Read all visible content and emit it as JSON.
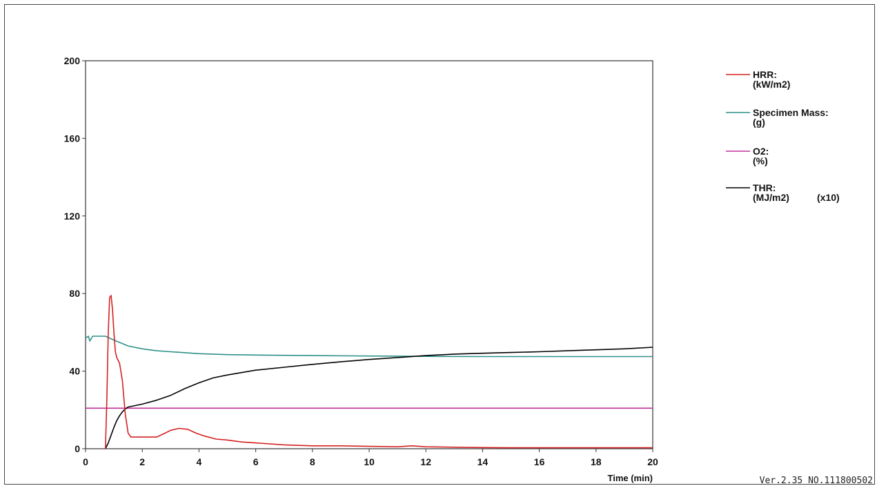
{
  "chart_data": {
    "type": "line",
    "xlabel": "Time (min)",
    "ylabel": "",
    "xlim": [
      0,
      20
    ],
    "ylim": [
      0,
      200
    ],
    "x_ticks": [
      "0",
      "2",
      "4",
      "6",
      "8",
      "10",
      "12",
      "14",
      "16",
      "18",
      "20"
    ],
    "y_ticks": [
      "0",
      "40",
      "80",
      "120",
      "160",
      "200"
    ],
    "grid": false,
    "legend_position": "right",
    "series": [
      {
        "name": "HRR:",
        "unit": "(kW/m2)",
        "multiplier": "",
        "color": "#d42020",
        "points": [
          [
            0.7,
            0
          ],
          [
            0.75,
            25
          ],
          [
            0.8,
            60
          ],
          [
            0.85,
            78
          ],
          [
            0.9,
            79
          ],
          [
            0.95,
            72
          ],
          [
            1.0,
            60
          ],
          [
            1.05,
            50
          ],
          [
            1.1,
            47
          ],
          [
            1.2,
            44
          ],
          [
            1.3,
            35
          ],
          [
            1.4,
            18
          ],
          [
            1.5,
            8
          ],
          [
            1.6,
            6
          ],
          [
            2.0,
            6
          ],
          [
            2.5,
            6
          ],
          [
            2.8,
            8
          ],
          [
            3.0,
            9.5
          ],
          [
            3.3,
            10.5
          ],
          [
            3.6,
            10
          ],
          [
            3.9,
            8
          ],
          [
            4.2,
            6.5
          ],
          [
            4.6,
            5
          ],
          [
            5.0,
            4.5
          ],
          [
            5.5,
            3.5
          ],
          [
            6.0,
            3
          ],
          [
            6.5,
            2.5
          ],
          [
            7.0,
            2
          ],
          [
            8.0,
            1.5
          ],
          [
            9.0,
            1.5
          ],
          [
            10.0,
            1.2
          ],
          [
            11.0,
            1
          ],
          [
            11.5,
            1.5
          ],
          [
            12.0,
            1
          ],
          [
            13.0,
            0.8
          ],
          [
            14.0,
            0.6
          ],
          [
            15.0,
            0.5
          ],
          [
            16.0,
            0.5
          ],
          [
            17.0,
            0.5
          ],
          [
            18.0,
            0.5
          ],
          [
            19.0,
            0.5
          ],
          [
            20.0,
            0.5
          ]
        ]
      },
      {
        "name": "Specimen Mass:",
        "unit": "(g)",
        "multiplier": "",
        "color": "#2f8f8a",
        "points": [
          [
            0,
            57
          ],
          [
            0.1,
            58
          ],
          [
            0.15,
            55.5
          ],
          [
            0.25,
            58
          ],
          [
            0.5,
            58
          ],
          [
            0.7,
            58
          ],
          [
            1.0,
            56
          ],
          [
            1.5,
            53
          ],
          [
            2.0,
            51.5
          ],
          [
            2.5,
            50.5
          ],
          [
            3.0,
            50
          ],
          [
            4.0,
            49
          ],
          [
            5.0,
            48.5
          ],
          [
            6.0,
            48.3
          ],
          [
            8.0,
            48
          ],
          [
            10.0,
            47.8
          ],
          [
            12.0,
            47.6
          ],
          [
            14.0,
            47.5
          ],
          [
            16.0,
            47.5
          ],
          [
            18.0,
            47.5
          ],
          [
            20.0,
            47.5
          ]
        ]
      },
      {
        "name": "O2:",
        "unit": "(%)",
        "multiplier": "",
        "color": "#c0309a",
        "points": [
          [
            0,
            20.9
          ],
          [
            20,
            20.9
          ]
        ]
      },
      {
        "name": "THR:",
        "unit": "(MJ/m2)",
        "multiplier": "(x10)",
        "color": "#000000",
        "points": [
          [
            0.7,
            0
          ],
          [
            0.8,
            3
          ],
          [
            0.9,
            7
          ],
          [
            1.0,
            11
          ],
          [
            1.1,
            14.5
          ],
          [
            1.2,
            17
          ],
          [
            1.3,
            19
          ],
          [
            1.4,
            20.5
          ],
          [
            1.5,
            21.5
          ],
          [
            2.0,
            23
          ],
          [
            2.5,
            25
          ],
          [
            3.0,
            27.5
          ],
          [
            3.5,
            31
          ],
          [
            4.0,
            34
          ],
          [
            4.5,
            36.5
          ],
          [
            5.0,
            38
          ],
          [
            6.0,
            40.5
          ],
          [
            7.0,
            42
          ],
          [
            8.0,
            43.5
          ],
          [
            9.0,
            44.8
          ],
          [
            10.0,
            46
          ],
          [
            11.0,
            47
          ],
          [
            12.0,
            48
          ],
          [
            13.0,
            48.8
          ],
          [
            14.0,
            49.2
          ],
          [
            15.0,
            49.6
          ],
          [
            16.0,
            50
          ],
          [
            17.0,
            50.5
          ],
          [
            18.0,
            51
          ],
          [
            19.0,
            51.5
          ],
          [
            20.0,
            52.3
          ]
        ]
      }
    ],
    "annotations": [
      "Ver.2.35 NO.111800502"
    ]
  }
}
